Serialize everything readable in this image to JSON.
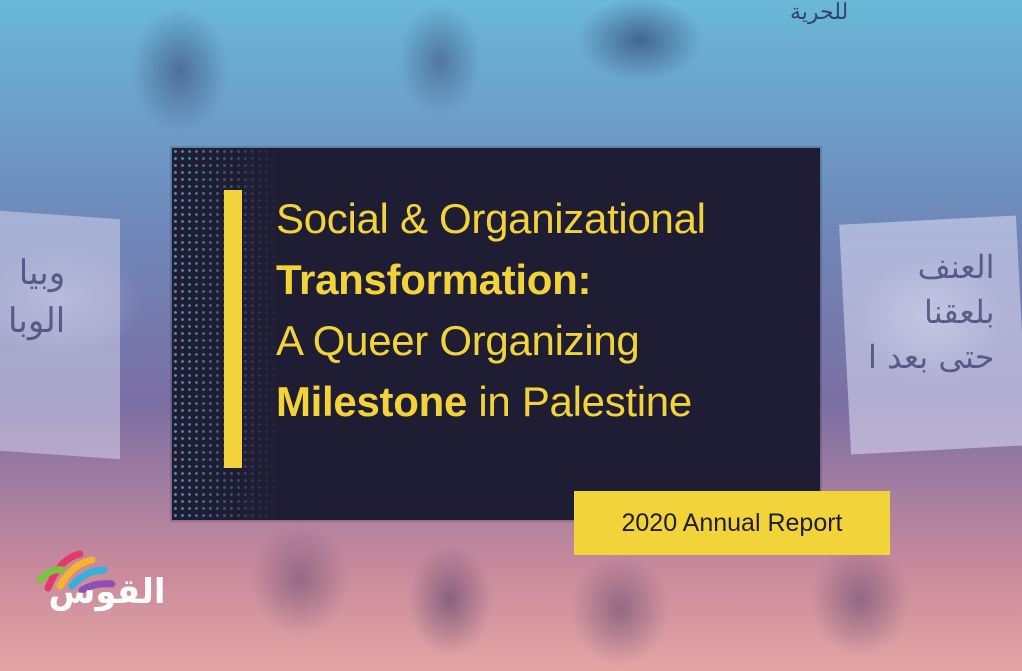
{
  "cover": {
    "title_line1": "Social & Organizational",
    "title_line2_bold": "Transformation:",
    "title_line3": "A Queer Organizing",
    "title_line4_bold": "Milestone",
    "title_line4_rest": " in Palestine",
    "badge": "2020 Annual Report"
  },
  "logo": {
    "text": "القوس",
    "colors": [
      "#e23b6a",
      "#f7b52c",
      "#37b0d8",
      "#7dc242",
      "#8e4fb5"
    ]
  },
  "background_signs": {
    "top": "للحرية",
    "left": "وبيا\nالوبا",
    "right": "العنف\nبلعقنا\nحتى بعد ا"
  },
  "colors": {
    "accent": "#f2d33a",
    "panel": "#1f1d33"
  }
}
